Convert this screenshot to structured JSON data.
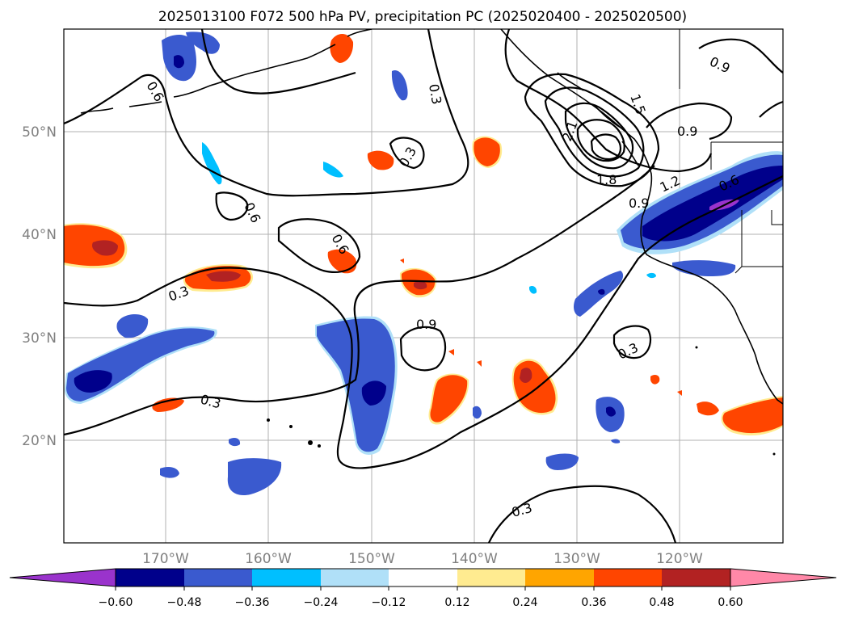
{
  "title": "2025013100 F072 500 hPa PV, precipitation PC (2025020400 - 2025020500)",
  "map": {
    "lon_range": [
      -180,
      -110
    ],
    "lat_range": [
      10,
      60
    ],
    "lat_labels": [
      "50°N",
      "40°N",
      "30°N",
      "20°N"
    ],
    "lon_labels": [
      "170°W",
      "160°W",
      "150°W",
      "140°W",
      "130°W",
      "120°W"
    ],
    "contour_labels": [
      "0.6",
      "0.3",
      "0.3",
      "0.9",
      "0.6",
      "0.6",
      "0.3",
      "0.9",
      "0.3",
      "0.3",
      "0.3",
      "1.5",
      "2.1",
      "1.8",
      "1.2",
      "0.9",
      "0.9",
      "0.6"
    ]
  },
  "colorbar": {
    "ticks": [
      "−0.60",
      "−0.48",
      "−0.36",
      "−0.24",
      "−0.12",
      "0.12",
      "0.24",
      "0.36",
      "0.48",
      "0.60"
    ],
    "colors": [
      "#9a33cc",
      "#00008b",
      "#3a5acf",
      "#00bfff",
      "#b0e0f8",
      "#ffffff",
      "#ffeb90",
      "#ffa500",
      "#ff4500",
      "#b22222",
      "#ff88a8"
    ]
  }
}
